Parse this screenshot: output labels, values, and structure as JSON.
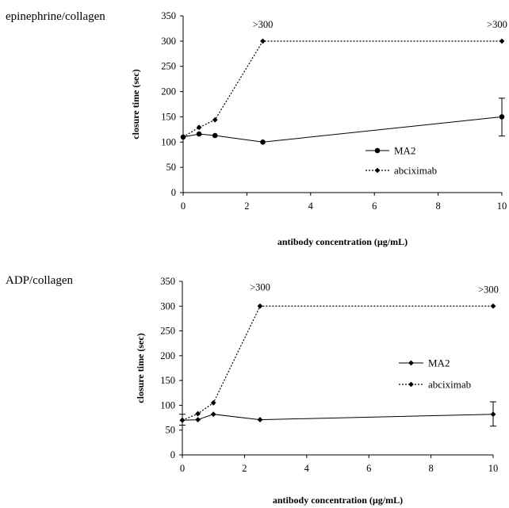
{
  "chart_data": [
    {
      "type": "line",
      "panel_label": "epinephrine/collagen",
      "xlabel": "antibody concentration (µg/mL)",
      "ylabel": "closure time (sec)",
      "xlim": [
        0,
        10
      ],
      "ylim": [
        0,
        350
      ],
      "xticks": [
        0,
        2,
        4,
        6,
        8,
        10
      ],
      "yticks": [
        0,
        50,
        100,
        150,
        200,
        250,
        300,
        350
      ],
      "legend_position": "right-middle",
      "series": [
        {
          "name": "MA2",
          "style": "solid",
          "marker": "circle",
          "color": "#000000",
          "points": [
            {
              "x": 0,
              "y": 110
            },
            {
              "x": 0.5,
              "y": 116
            },
            {
              "x": 1,
              "y": 113
            },
            {
              "x": 2.5,
              "y": 100
            },
            {
              "x": 10,
              "y": 150,
              "err_low": 112,
              "err_high": 187
            }
          ]
        },
        {
          "name": "abciximab",
          "style": "dotted",
          "marker": "diamond",
          "color": "#000000",
          "points": [
            {
              "x": 0,
              "y": 110
            },
            {
              "x": 0.5,
              "y": 129
            },
            {
              "x": 1,
              "y": 144
            },
            {
              "x": 2.5,
              "y": 300
            },
            {
              "x": 10,
              "y": 300
            }
          ]
        }
      ],
      "annotations": [
        {
          "text": ">300",
          "x": 2.5,
          "y": 300
        },
        {
          "text": ">300",
          "x": 10,
          "y": 300
        }
      ]
    },
    {
      "type": "line",
      "panel_label": "ADP/collagen",
      "xlabel": "antibody concentration (µg/mL)",
      "ylabel": "closure time (sec)",
      "xlim": [
        0,
        10
      ],
      "ylim": [
        0,
        350
      ],
      "xticks": [
        0,
        2,
        4,
        6,
        8,
        10
      ],
      "yticks": [
        0,
        50,
        100,
        150,
        200,
        250,
        300,
        350
      ],
      "legend_position": "right-middle",
      "series": [
        {
          "name": "MA2",
          "style": "solid",
          "marker": "diamond",
          "color": "#000000",
          "points": [
            {
              "x": 0,
              "y": 70,
              "err_low": 60,
              "err_high": 82
            },
            {
              "x": 0.5,
              "y": 71
            },
            {
              "x": 1,
              "y": 82
            },
            {
              "x": 2.5,
              "y": 71
            },
            {
              "x": 10,
              "y": 82,
              "err_low": 58,
              "err_high": 107
            }
          ]
        },
        {
          "name": "abciximab",
          "style": "dotted",
          "marker": "diamond",
          "color": "#000000",
          "points": [
            {
              "x": 0,
              "y": 70
            },
            {
              "x": 0.5,
              "y": 83
            },
            {
              "x": 1,
              "y": 105
            },
            {
              "x": 2.5,
              "y": 300
            },
            {
              "x": 10,
              "y": 300
            }
          ]
        }
      ],
      "annotations": [
        {
          "text": ">300",
          "x": 2.5,
          "y": 300
        },
        {
          "text": ">300",
          "x": 10,
          "y": 300
        }
      ]
    }
  ]
}
